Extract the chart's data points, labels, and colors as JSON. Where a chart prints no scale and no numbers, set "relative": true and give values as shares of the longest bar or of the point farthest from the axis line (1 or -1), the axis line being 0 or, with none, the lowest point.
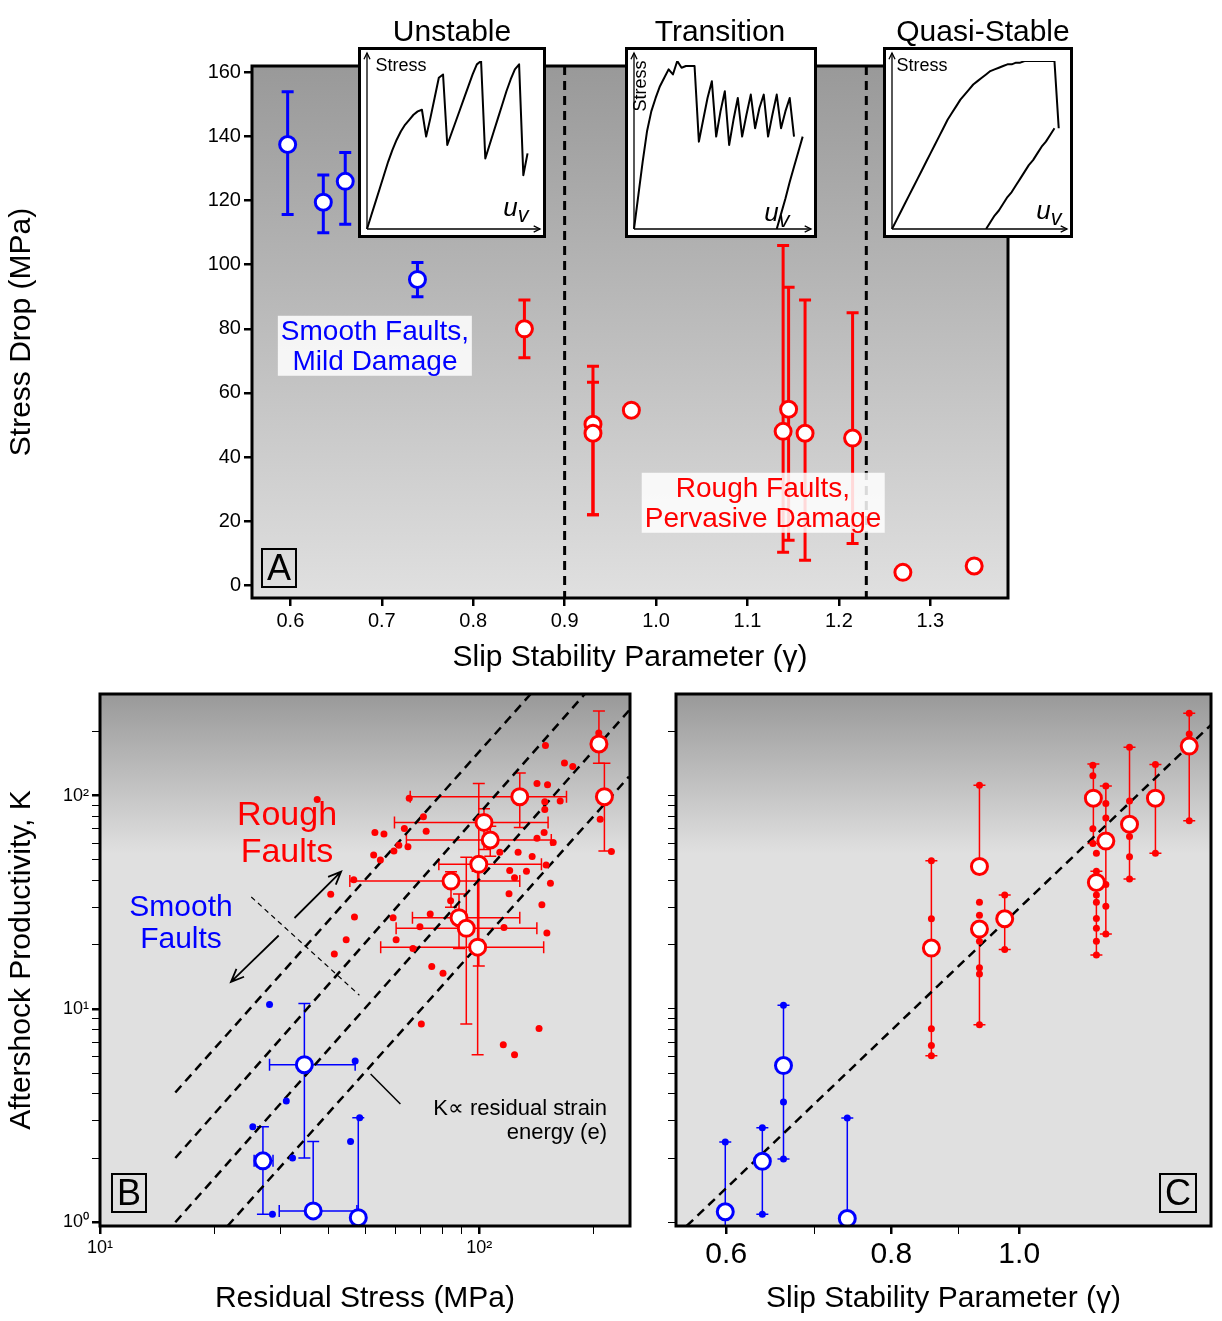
{
  "chart_data": [
    {
      "type": "scatter",
      "xlabel": "Slip Stability Parameter (γ)",
      "ylabel": "Stress Drop (MPa)",
      "marker": "circle",
      "annotations": [
        "Smooth Faults,\nMild Damage",
        "Rough Faults,\nPervasive Damage",
        "A"
      ],
      "xlim": [
        0.558,
        1.385
      ],
      "ylim": [
        -4,
        162
      ],
      "xticks": [
        0.6,
        0.7,
        0.8,
        0.9,
        {
          "value": 1,
          "label": "1.0"
        },
        1.1,
        1.2,
        1.3
      ],
      "yticks": [
        0,
        20,
        40,
        60,
        80,
        100,
        120,
        140,
        160
      ],
      "ref_lines": [
        {
          "axis": "x",
          "value": 0.9,
          "color": "#000000",
          "line_style": "dashed"
        },
        {
          "axis": "x",
          "value": 1.23,
          "color": "#000000",
          "line_style": "dashed"
        }
      ],
      "series": [
        {
          "color": "#0000ff",
          "x": [
            0.597,
            0.636,
            0.66,
            0.739
          ],
          "values": [
            137.5,
            119.5,
            126,
            95.4
          ],
          "errors": [
            [
              115.7,
              154
            ],
            [
              110,
              128
            ],
            [
              112.6,
              135
            ],
            [
              90,
              100.7
            ]
          ]
        },
        {
          "color": "#ff0000",
          "x": [
            0.856,
            0.931,
            0.931,
            0.973,
            1.139,
            1.145,
            1.163,
            1.215,
            1.27,
            1.348
          ],
          "values": [
            80,
            50.2,
            47.4,
            54.6,
            48,
            54.9,
            47.4,
            45.9,
            4,
            6
          ],
          "errors": [
            [
              71,
              89
            ],
            [
              22,
              63.3
            ],
            [
              22,
              68.3
            ],
            null,
            [
              10.3,
              106
            ],
            [
              14,
              93
            ],
            [
              7.8,
              89
            ],
            [
              13,
              85
            ],
            null,
            null
          ]
        }
      ]
    },
    {
      "type": "line",
      "relative": true,
      "title": "Unstable",
      "xlabel": "u$_{v}$",
      "ylabel": "Stress",
      "marker": "none",
      "categories": [
        null,
        null,
        null,
        null,
        null,
        null,
        null,
        null,
        null,
        null,
        null,
        null,
        null,
        null,
        null,
        null,
        null,
        null,
        null,
        null,
        null,
        null,
        null,
        null,
        null,
        null,
        null,
        null,
        null,
        null,
        null,
        null,
        null,
        null,
        null,
        null,
        null,
        null,
        null,
        null,
        null
      ],
      "series": [
        {
          "color": "#000000",
          "values": [
            0,
            0.08,
            0.16,
            0.24,
            0.32,
            0.4,
            0.47,
            0.53,
            0.58,
            0.62,
            0.65,
            0.68,
            0.7,
            0.71,
            0.55,
            0.66,
            0.78,
            0.9,
            0.92,
            0.5,
            0.57,
            0.64,
            0.71,
            0.78,
            0.85,
            0.92,
            0.98,
            1.0,
            0.42,
            0.5,
            0.58,
            0.66,
            0.74,
            0.82,
            0.89,
            0.95,
            0.98,
            0.32,
            0.45,
            null,
            null
          ]
        }
      ]
    },
    {
      "type": "line",
      "relative": true,
      "title": "Transition",
      "xlabel": "u$_{v}$",
      "ylabel": "Stress",
      "marker": "none",
      "categories": [
        null,
        null,
        null,
        null,
        null,
        null,
        null,
        null,
        null,
        null,
        null,
        null,
        null,
        null,
        null,
        null,
        null,
        null,
        null,
        null,
        null,
        null,
        null,
        null,
        null,
        null,
        null,
        null,
        null,
        null,
        null,
        null,
        null,
        null,
        null,
        null,
        null,
        null,
        null,
        null,
        null
      ],
      "series": [
        {
          "color": "#000000",
          "values": [
            0,
            0.2,
            0.4,
            0.58,
            0.7,
            0.78,
            0.85,
            0.9,
            0.95,
            0.92,
            1.0,
            0.96,
            0.97,
            0.97,
            0.97,
            0.52,
            0.65,
            0.78,
            0.88,
            0.55,
            0.7,
            0.82,
            0.5,
            0.65,
            0.78,
            0.55,
            0.68,
            0.8,
            0.6,
            0.72,
            0.8,
            0.55,
            0.68,
            0.8,
            0.6,
            0.7,
            0.78,
            0.55,
            null,
            null,
            null
          ]
        },
        {
          "color": "#000000",
          "values": [
            null,
            null,
            null,
            null,
            null,
            null,
            null,
            null,
            null,
            null,
            null,
            null,
            null,
            null,
            null,
            null,
            null,
            null,
            null,
            null,
            null,
            null,
            null,
            null,
            null,
            null,
            null,
            null,
            null,
            null,
            null,
            null,
            null,
            0,
            0.09,
            0.18,
            0.28,
            0.37,
            0.46,
            0.55,
            null
          ]
        }
      ]
    },
    {
      "type": "line",
      "relative": true,
      "title": "Quasi-Stable",
      "xlabel": "u$_{v}$",
      "ylabel": "Stress",
      "marker": "none",
      "categories": [
        null,
        null,
        null,
        null,
        null,
        null,
        null,
        null,
        null,
        null,
        null,
        null,
        null,
        null,
        null,
        null,
        null,
        null,
        null,
        null,
        null,
        null,
        null,
        null,
        null,
        null,
        null,
        null,
        null,
        null,
        null,
        null,
        null,
        null,
        null,
        null,
        null,
        null,
        null,
        null,
        null
      ],
      "series": [
        {
          "color": "#000000",
          "values": [
            0,
            0.05,
            0.1,
            0.15,
            0.2,
            0.25,
            0.3,
            0.35,
            0.4,
            0.45,
            0.5,
            0.55,
            0.6,
            0.65,
            0.69,
            0.73,
            0.77,
            0.8,
            0.83,
            0.86,
            0.88,
            0.9,
            0.92,
            0.94,
            0.95,
            0.96,
            0.97,
            0.98,
            0.98,
            0.99,
            0.99,
            1.0,
            1.0,
            1.0,
            1.0,
            1.0,
            1.0,
            1.0,
            1.0,
            0.6,
            null
          ]
        },
        {
          "color": "#000000",
          "values": [
            null,
            null,
            null,
            null,
            null,
            null,
            null,
            null,
            null,
            null,
            null,
            null,
            null,
            null,
            null,
            null,
            null,
            null,
            null,
            null,
            null,
            null,
            0,
            0.04,
            0.08,
            0.11,
            0.15,
            0.19,
            0.22,
            0.26,
            0.3,
            0.34,
            0.38,
            0.41,
            0.45,
            0.49,
            0.52,
            0.56,
            0.6,
            null,
            null
          ]
        }
      ]
    },
    {
      "type": "scatter",
      "xlabel": "Residual Stress (MPa)",
      "ylabel": "Aftershock Productivity, K",
      "log": "xy",
      "marker": "circle",
      "annotations": [
        "Rough\nFaults",
        "Smooth\nFaults",
        "K∝ residual strain\nenergy (e)",
        "B"
      ],
      "xlim": [
        10,
        250
      ],
      "ylim": [
        0.96,
        300
      ],
      "xticks": [
        {
          "value": 10,
          "label": "10¹"
        },
        {
          "value": 20,
          "label": null
        },
        {
          "value": 30,
          "label": null
        },
        {
          "value": 40,
          "label": null
        },
        {
          "value": 50,
          "label": null
        },
        {
          "value": 60,
          "label": null
        },
        {
          "value": 70,
          "label": null
        },
        {
          "value": 80,
          "label": null
        },
        {
          "value": 90,
          "label": null
        },
        {
          "value": 100,
          "label": "10²"
        },
        {
          "value": 200,
          "label": null
        }
      ],
      "yticks": [
        {
          "value": 1,
          "label": "10⁰"
        },
        {
          "value": 2,
          "label": null
        },
        {
          "value": 3,
          "label": null
        },
        {
          "value": 4,
          "label": null
        },
        {
          "value": 5,
          "label": null
        },
        {
          "value": 6,
          "label": null
        },
        {
          "value": 7,
          "label": null
        },
        {
          "value": 8,
          "label": null
        },
        {
          "value": 9,
          "label": null
        },
        {
          "value": 10,
          "label": "10¹"
        },
        {
          "value": 20,
          "label": null
        },
        {
          "value": 30,
          "label": null
        },
        {
          "value": 40,
          "label": null
        },
        {
          "value": 50,
          "label": null
        },
        {
          "value": 60,
          "label": null
        },
        {
          "value": 70,
          "label": null
        },
        {
          "value": 80,
          "label": null
        },
        {
          "value": 90,
          "label": null
        },
        {
          "value": 100,
          "label": "10²"
        },
        {
          "value": 200,
          "label": null
        }
      ],
      "series": [
        {
          "type": "line",
          "color": "#000000",
          "line_style": "dashed",
          "marker": "none",
          "x": [
            15.8,
            136.8
          ],
          "values": [
            4.06,
            300
          ]
        },
        {
          "type": "line",
          "color": "#000000",
          "line_style": "dashed",
          "marker": "none",
          "x": [
            15.8,
            190
          ],
          "values": [
            2.0,
            300
          ]
        },
        {
          "type": "line",
          "color": "#000000",
          "line_style": "dashed",
          "marker": "none",
          "x": [
            15.8,
            248.5
          ],
          "values": [
            1.0,
            251
          ]
        },
        {
          "type": "line",
          "color": "#000000",
          "line_style": "dashed",
          "marker": "none",
          "x": [
            21.7,
            248.5
          ],
          "values": [
            0.96,
            123
          ]
        },
        {
          "color": "#ff0000",
          "x": [
            37.4,
            65.4,
            71.3,
            53.1,
            56.1,
            63.5,
            72.5,
            61.4,
            59.6,
            64.9,
            52.7,
            54.9,
            46.7,
            40.6,
            46.9,
            44.6,
            41.5,
            59.3,
            149.6,
            167.9,
            176.6,
            142.1,
            151.5,
            149,
            163.6,
            149,
            148.4,
            142.1,
            156.8,
            113.4,
            126.7,
            138,
            150.2,
            120.4,
            133.3,
            124,
            154.2,
            119.9,
            84.1,
            146.4,
            74.3,
            69.8,
            116.3,
            150.9,
            60.4,
            66.9,
            75,
            80.3,
            70.4,
            143.9,
            115.8,
            124,
            223.3,
            208.6,
            206.8
          ],
          "values": [
            95.9,
            97.4,
            79.7,
            67.2,
            66.2,
            70.3,
            68.2,
            58.6,
            55.1,
            57.7,
            52.7,
            50,
            40.4,
            34.5,
            27,
            21.1,
            18.1,
            26.8,
            172,
            142.3,
            137,
            114.2,
            112.5,
            93.8,
            94.5,
            86.3,
            67.2,
            63.2,
            60.4,
            54.3,
            54.3,
            51.9,
            47.4,
            44.6,
            44.3,
            41.3,
            38.9,
            34.7,
            32.2,
            30.8,
            27.9,
            24.3,
            24.1,
            22.7,
            21.1,
            19.2,
            15.8,
            14.7,
            8.5,
            8.1,
            6.8,
            6.1,
            54.7,
            77.6,
            197
          ]
        },
        {
          "color": "#0000ff",
          "x": [
            28.0,
            31.0,
            32.2,
            25.3,
            47.1,
            45.8,
            48.4,
            28.5
          ],
          "values": [
            10.5,
            3.7,
            2.0,
            2.8,
            5.7,
            2.39,
            3.09,
            1.09
          ]
        },
        {
          "color": "#ff0000",
          "x": [
            207,
            214,
            128,
            103,
            107,
            99.8,
            84.3,
            88.5,
            92.5,
            99.1
          ],
          "values": [
            175,
            99,
            99,
            75,
            62,
            47.7,
            39.8,
            26.8,
            23.9,
            19.5
          ],
          "errors": [
            [
              142,
              250
            ],
            [
              55,
              142
            ],
            [
              71,
              128
            ],
            [
              56,
              87
            ],
            [
              52,
              72
            ],
            [
              15.9,
              114
            ],
            [
              30,
              44
            ],
            [
              19.2,
              34.6
            ],
            [
              8.5,
              51.5
            ],
            [
              6.1,
              44.3
            ]
          ],
          "xerrors": [
            null,
            null,
            [
              65.8,
              170
            ],
            [
              59.8,
              152
            ],
            [
              64.3,
              155
            ],
            [
              78.3,
              146
            ],
            [
              45.6,
              128
            ],
            [
              66.7,
              128
            ],
            [
              60.4,
              142
            ],
            [
              55,
              148
            ]
          ]
        },
        {
          "color": "#0000ff",
          "x": [
            34.6,
            26.9,
            36.5,
            48
          ],
          "values": [
            5.48,
            1.94,
            1.13,
            1.05
          ],
          "errors": [
            [
              2.0,
              10.6
            ],
            [
              1.09,
              2.8
            ],
            [
              1.13,
              2.39
            ],
            [
              1.05,
              3.09
            ]
          ],
          "xerrors": [
            [
              28.0,
              47.1
            ],
            [
              25.5,
              28.6
            ],
            [
              29.7,
              47.6
            ],
            null
          ]
        }
      ]
    },
    {
      "type": "scatter",
      "xlabel": "Slip Stability Parameter (γ)",
      "log": "xy",
      "marker": "circle",
      "tick_labels": "x",
      "annotations": [
        "C"
      ],
      "xlim": [
        0.5497,
        1.397
      ],
      "ylim": [
        0.96,
        300
      ],
      "xticks": [
        0.6,
        {
          "value": 0.7,
          "label": null
        },
        0.8,
        {
          "value": 0.9,
          "label": null
        },
        {
          "value": 1,
          "label": "1.0"
        }
      ],
      "yticks": [
        {
          "value": 1,
          "label": null
        },
        {
          "value": 2,
          "label": null
        },
        {
          "value": 3,
          "label": null
        },
        {
          "value": 4,
          "label": null
        },
        {
          "value": 5,
          "label": null
        },
        {
          "value": 6,
          "label": null
        },
        {
          "value": 7,
          "label": null
        },
        {
          "value": 8,
          "label": null
        },
        {
          "value": 9,
          "label": null
        },
        {
          "value": 10,
          "label": null
        },
        {
          "value": 20,
          "label": null
        },
        {
          "value": 30,
          "label": null
        },
        {
          "value": 40,
          "label": null
        },
        {
          "value": 50,
          "label": null
        },
        {
          "value": 60,
          "label": null
        },
        {
          "value": 70,
          "label": null
        },
        {
          "value": 80,
          "label": null
        },
        {
          "value": 90,
          "label": null
        },
        {
          "value": 100,
          "label": null
        },
        {
          "value": 200,
          "label": null
        }
      ],
      "series": [
        {
          "type": "line",
          "color": "#000000",
          "line_style": "dashed",
          "marker": "none",
          "x": [
            0.56,
            1.397
          ],
          "values": [
            0.96,
            215
          ]
        },
        {
          "color": "#ff0000",
          "x": [
            0.858,
            0.858,
            0.858,
            0.858,
            0.858,
            0.933,
            0.933,
            0.933,
            0.933,
            0.933,
            0.933,
            0.933,
            0.975,
            0.975,
            1.137,
            1.137,
            1.137,
            1.137,
            1.144,
            1.144,
            1.144,
            1.144,
            1.144,
            1.144,
            1.144,
            1.144,
            1.163,
            1.163,
            1.163,
            1.163,
            1.163,
            1.163,
            1.212,
            1.212,
            1.212,
            1.212,
            1.212,
            1.268,
            1.268,
            1.345,
            1.345,
            1.345
          ],
          "values": [
            49.5,
            26.5,
            8.07,
            6.74,
            6.04,
            112,
            31.7,
            27.5,
            20.8,
            15.6,
            14.6,
            8.44,
            34.2,
            19.0,
            139,
            124,
            70,
            59.7,
            53.8,
            44.2,
            34.2,
            31.7,
            26.6,
            23.9,
            20.8,
            17.9,
            111,
            92,
            78.6,
            38.3,
            30.3,
            22.5,
            169,
            94.5,
            64.4,
            51.8,
            40.7,
            140,
            53.8,
            244,
            195,
            76.3
          ]
        },
        {
          "color": "#0000ff",
          "x": [
            0.599,
            0.639,
            0.639,
            0.663,
            0.663,
            0.663,
            0.741
          ],
          "values": [
            2.38,
            2.77,
            1.09,
            10.4,
            3.66,
            1.98,
            3.08
          ]
        },
        {
          "color": "#ff0000",
          "x": [
            0.858,
            0.933,
            0.933,
            0.975,
            1.138,
            1.144,
            1.163,
            1.212,
            1.268,
            1.345
          ],
          "values": [
            19.3,
            46.6,
            23.7,
            26.5,
            97.4,
            39.2,
            61.3,
            73.5,
            97.4,
            171
          ],
          "errors": [
            [
              6.04,
              49.5
            ],
            [
              46.6,
              112
            ],
            [
              8.44,
              23.7
            ],
            [
              19.0,
              34.2
            ],
            [
              59.7,
              141
            ],
            [
              17.9,
              44.2
            ],
            [
              22.5,
              111
            ],
            [
              40.7,
              169
            ],
            [
              53.8,
              140
            ],
            [
              76.3,
              244
            ]
          ]
        },
        {
          "color": "#0000ff",
          "x": [
            0.599,
            0.639,
            0.663,
            0.741
          ],
          "values": [
            1.12,
            1.93,
            5.43,
            1.04
          ],
          "errors": [
            [
              0.96,
              2.38
            ],
            [
              1.09,
              2.77
            ],
            [
              1.98,
              10.4
            ],
            [
              1.04,
              3.08
            ]
          ]
        }
      ]
    }
  ]
}
